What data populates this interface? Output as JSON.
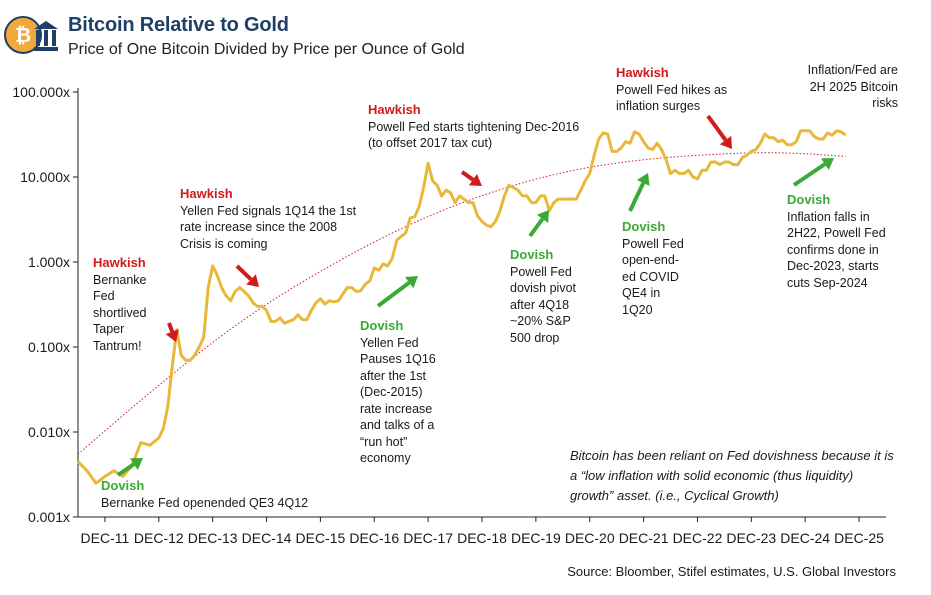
{
  "header": {
    "title": "Bitcoin Relative to Gold",
    "subtitle": "Price of One Bitcoin Divided by Price per Ounce of Gold"
  },
  "colors": {
    "line": "#e8b83a",
    "trend": "#d11a1a",
    "hawkish": "#d11a1a",
    "dovish": "#3aaa35",
    "title": "#1f3f66"
  },
  "icons": {
    "logo": "bitcoin-bank-icon"
  },
  "chart_data": {
    "type": "line",
    "scale": "log",
    "ylim": [
      0.001,
      100
    ],
    "yticks": [
      {
        "value": 0.001,
        "label": "0.001x"
      },
      {
        "value": 0.01,
        "label": "0.010x"
      },
      {
        "value": 0.1,
        "label": "0.100x"
      },
      {
        "value": 1,
        "label": "1.000x"
      },
      {
        "value": 10,
        "label": "10.000x"
      },
      {
        "value": 100,
        "label": "100.000x"
      }
    ],
    "xlim": [
      "2011-06",
      "2026-06"
    ],
    "xticks": [
      "DEC-11",
      "DEC-12",
      "DEC-13",
      "DEC-14",
      "DEC-15",
      "DEC-16",
      "DEC-17",
      "DEC-18",
      "DEC-19",
      "DEC-20",
      "DEC-21",
      "DEC-22",
      "DEC-23",
      "DEC-24",
      "DEC-25"
    ],
    "grid": false,
    "series": [
      {
        "values": [
          [
            "2011-06",
            0.0045
          ],
          [
            "2011-08",
            0.0035
          ],
          [
            "2011-10",
            0.0025
          ],
          [
            "2011-12",
            0.003
          ],
          [
            "2012-02",
            0.0035
          ],
          [
            "2012-04",
            0.003
          ],
          [
            "2012-06",
            0.004
          ],
          [
            "2012-08",
            0.0075
          ],
          [
            "2012-10",
            0.007
          ],
          [
            "2012-12",
            0.0085
          ],
          [
            "2013-01",
            0.011
          ],
          [
            "2013-02",
            0.02
          ],
          [
            "2013-03",
            0.06
          ],
          [
            "2013-04",
            0.16
          ],
          [
            "2013-05",
            0.08
          ],
          [
            "2013-06",
            0.07
          ],
          [
            "2013-07",
            0.07
          ],
          [
            "2013-08",
            0.08
          ],
          [
            "2013-09",
            0.1
          ],
          [
            "2013-10",
            0.13
          ],
          [
            "2013-11",
            0.5
          ],
          [
            "2013-12",
            0.9
          ],
          [
            "2014-01",
            0.7
          ],
          [
            "2014-02",
            0.5
          ],
          [
            "2014-03",
            0.4
          ],
          [
            "2014-04",
            0.35
          ],
          [
            "2014-05",
            0.45
          ],
          [
            "2014-06",
            0.5
          ],
          [
            "2014-07",
            0.45
          ],
          [
            "2014-08",
            0.4
          ],
          [
            "2014-09",
            0.33
          ],
          [
            "2014-10",
            0.3
          ],
          [
            "2014-11",
            0.3
          ],
          [
            "2014-12",
            0.27
          ],
          [
            "2015-01",
            0.2
          ],
          [
            "2015-02",
            0.2
          ],
          [
            "2015-03",
            0.22
          ],
          [
            "2015-04",
            0.19
          ],
          [
            "2015-05",
            0.2
          ],
          [
            "2015-06",
            0.21
          ],
          [
            "2015-07",
            0.24
          ],
          [
            "2015-08",
            0.21
          ],
          [
            "2015-09",
            0.21
          ],
          [
            "2015-10",
            0.27
          ],
          [
            "2015-11",
            0.33
          ],
          [
            "2015-12",
            0.37
          ],
          [
            "2016-01",
            0.32
          ],
          [
            "2016-02",
            0.35
          ],
          [
            "2016-03",
            0.34
          ],
          [
            "2016-04",
            0.35
          ],
          [
            "2016-05",
            0.42
          ],
          [
            "2016-06",
            0.5
          ],
          [
            "2016-07",
            0.5
          ],
          [
            "2016-08",
            0.45
          ],
          [
            "2016-09",
            0.46
          ],
          [
            "2016-10",
            0.55
          ],
          [
            "2016-11",
            0.6
          ],
          [
            "2016-12",
            0.85
          ],
          [
            "2017-01",
            0.8
          ],
          [
            "2017-02",
            0.95
          ],
          [
            "2017-03",
            0.9
          ],
          [
            "2017-04",
            1.1
          ],
          [
            "2017-05",
            1.8
          ],
          [
            "2017-06",
            2.0
          ],
          [
            "2017-07",
            2.2
          ],
          [
            "2017-08",
            3.3
          ],
          [
            "2017-09",
            3.4
          ],
          [
            "2017-10",
            4.5
          ],
          [
            "2017-11",
            7.5
          ],
          [
            "2017-12",
            14.5
          ],
          [
            "2018-01",
            9
          ],
          [
            "2018-02",
            8
          ],
          [
            "2018-03",
            6
          ],
          [
            "2018-04",
            7
          ],
          [
            "2018-05",
            6.5
          ],
          [
            "2018-06",
            5
          ],
          [
            "2018-07",
            6
          ],
          [
            "2018-08",
            5.5
          ],
          [
            "2018-09",
            5
          ],
          [
            "2018-10",
            5
          ],
          [
            "2018-11",
            3.5
          ],
          [
            "2018-12",
            3
          ],
          [
            "2019-01",
            2.7
          ],
          [
            "2019-02",
            2.6
          ],
          [
            "2019-03",
            3
          ],
          [
            "2019-04",
            4
          ],
          [
            "2019-05",
            6
          ],
          [
            "2019-06",
            8
          ],
          [
            "2019-07",
            7.5
          ],
          [
            "2019-08",
            7
          ],
          [
            "2019-09",
            6
          ],
          [
            "2019-10",
            6
          ],
          [
            "2019-11",
            5
          ],
          [
            "2019-12",
            5
          ],
          [
            "2020-01",
            6
          ],
          [
            "2020-02",
            6
          ],
          [
            "2020-03",
            4
          ],
          [
            "2020-04",
            5
          ],
          [
            "2020-05",
            5.5
          ],
          [
            "2020-06",
            5.5
          ],
          [
            "2020-07",
            5.5
          ],
          [
            "2020-08",
            5.5
          ],
          [
            "2020-09",
            5.5
          ],
          [
            "2020-10",
            7
          ],
          [
            "2020-11",
            9
          ],
          [
            "2020-12",
            11
          ],
          [
            "2021-01",
            18
          ],
          [
            "2021-02",
            28
          ],
          [
            "2021-03",
            33
          ],
          [
            "2021-04",
            32
          ],
          [
            "2021-05",
            20
          ],
          [
            "2021-06",
            20
          ],
          [
            "2021-07",
            22
          ],
          [
            "2021-08",
            26
          ],
          [
            "2021-09",
            25
          ],
          [
            "2021-10",
            34
          ],
          [
            "2021-11",
            32
          ],
          [
            "2021-12",
            26
          ],
          [
            "2022-01",
            22
          ],
          [
            "2022-02",
            21
          ],
          [
            "2022-03",
            25
          ],
          [
            "2022-04",
            21
          ],
          [
            "2022-05",
            16
          ],
          [
            "2022-06",
            11
          ],
          [
            "2022-07",
            12
          ],
          [
            "2022-08",
            11
          ],
          [
            "2022-09",
            11
          ],
          [
            "2022-10",
            12
          ],
          [
            "2022-11",
            10
          ],
          [
            "2022-12",
            9.5
          ],
          [
            "2023-01",
            12
          ],
          [
            "2023-02",
            12
          ],
          [
            "2023-03",
            15
          ],
          [
            "2023-04",
            15
          ],
          [
            "2023-05",
            14
          ],
          [
            "2023-06",
            15
          ],
          [
            "2023-07",
            15
          ],
          [
            "2023-08",
            14
          ],
          [
            "2023-09",
            14
          ],
          [
            "2023-10",
            17
          ],
          [
            "2023-11",
            18
          ],
          [
            "2023-12",
            20
          ],
          [
            "2024-01",
            21
          ],
          [
            "2024-02",
            25
          ],
          [
            "2024-03",
            32
          ],
          [
            "2024-04",
            29
          ],
          [
            "2024-05",
            29
          ],
          [
            "2024-06",
            26
          ],
          [
            "2024-07",
            27
          ],
          [
            "2024-08",
            24
          ],
          [
            "2024-09",
            24
          ],
          [
            "2024-10",
            26
          ],
          [
            "2024-11",
            35
          ],
          [
            "2024-12",
            35
          ],
          [
            "2025-01",
            35
          ],
          [
            "2025-02",
            30
          ],
          [
            "2025-03",
            28
          ],
          [
            "2025-04",
            28
          ],
          [
            "2025-05",
            33
          ],
          [
            "2025-06",
            31
          ],
          [
            "2025-07",
            35
          ],
          [
            "2025-08",
            34
          ],
          [
            "2025-09",
            31
          ]
        ]
      },
      {
        "style": "dotted",
        "values": [
          [
            "2011-06",
            0.0055
          ],
          [
            "2013-01",
            0.04
          ],
          [
            "2014-07",
            0.22
          ],
          [
            "2016-01",
            0.85
          ],
          [
            "2017-07",
            2.7
          ],
          [
            "2019-01",
            6.5
          ],
          [
            "2020-07",
            12
          ],
          [
            "2022-01",
            16.5
          ],
          [
            "2023-07",
            19
          ],
          [
            "2024-07",
            19.5
          ],
          [
            "2025-09",
            17.5
          ]
        ]
      }
    ],
    "annotations": [
      {
        "id": "a1",
        "type": "dovish",
        "label": "Dovish",
        "text": "Bernanke Fed openended QE3 4Q12"
      },
      {
        "id": "a2",
        "type": "hawkish",
        "label": "Hawkish",
        "text": "Bernanke Fed shortlived Taper Tantrum!"
      },
      {
        "id": "a3",
        "type": "hawkish",
        "label": "Hawkish",
        "text": "Yellen Fed signals 1Q14 the 1st rate increase since the 2008 Crisis is coming"
      },
      {
        "id": "a4",
        "type": "dovish",
        "label": "Dovish",
        "text": "Yellen Fed Pauses 1Q16 after the 1st (Dec-2015) rate increase and talks of a “run hot” economy"
      },
      {
        "id": "a5",
        "type": "hawkish",
        "label": "Hawkish",
        "text": "Powell Fed starts tightening Dec-2016 (to offset 2017 tax cut)"
      },
      {
        "id": "a6",
        "type": "dovish",
        "label": "Dovish",
        "text": "Powell Fed dovish pivot after 4Q18 ~20% S&P 500 drop"
      },
      {
        "id": "a7",
        "type": "hawkish",
        "label": "Hawkish",
        "text": "Powell Fed hikes as inflation surges"
      },
      {
        "id": "a8",
        "type": "dovish",
        "label": "Dovish",
        "text": "Powell Fed open-end-ed COVID QE4 in 1Q20"
      },
      {
        "id": "a9",
        "type": "dovish",
        "label": "Dovish",
        "text": "Inflation falls in 2H22, Powell Fed confirms done in Dec-2023, starts cuts Sep-2024"
      },
      {
        "id": "a10",
        "type": "note",
        "label": "",
        "text": "Inflation/Fed are 2H 2025 Bitcoin risks"
      }
    ],
    "note": "Bitcoin has been reliant on Fed dovishness because it is a “low inflation with solid economic (thus liquidity) growth” asset. (i.e., Cyclical Growth)"
  },
  "source": "Source: Bloomber, Stifel estimates, U.S. Global Investors"
}
